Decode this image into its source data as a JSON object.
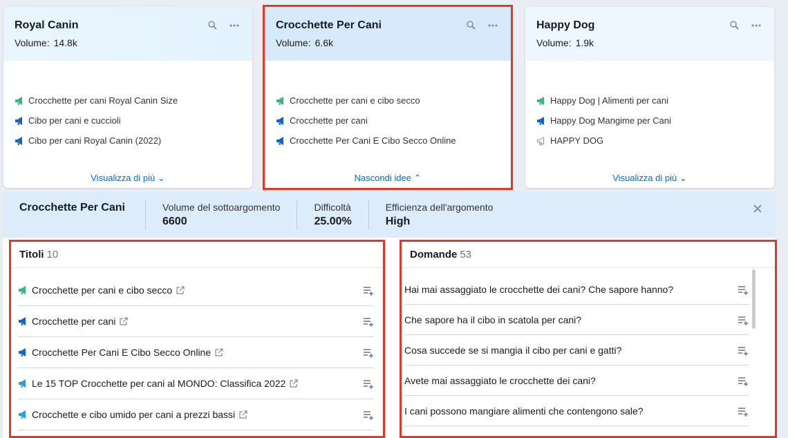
{
  "cards": [
    {
      "title": "Royal Canin",
      "volume_label": "Volume:",
      "volume": "14.8k",
      "ideas": [
        "Crocchette per cani Royal Canin Size",
        "Cibo per cani e cuccioli",
        "Cibo per cani Royal Canin (2022)"
      ],
      "toggle": "Visualizza di più"
    },
    {
      "title": "Crocchette Per Cani",
      "volume_label": "Volume:",
      "volume": "6.6k",
      "ideas": [
        "Crocchette per cani e cibo secco",
        "Crocchette per cani",
        "Crocchette Per Cani E Cibo Secco Online"
      ],
      "toggle": "Nascondi idee"
    },
    {
      "title": "Happy Dog",
      "volume_label": "Volume:",
      "volume": "1.9k",
      "ideas": [
        "Happy Dog | Alimenti per cani",
        "Happy Dog Mangime per Cani",
        "HAPPY DOG"
      ],
      "toggle": "Visualizza di più"
    }
  ],
  "detail": {
    "title": "Crocchette Per Cani",
    "stats": [
      {
        "label": "Volume del sottoargomento",
        "value": "6600"
      },
      {
        "label": "Difficoltà",
        "value": "25.00%"
      },
      {
        "label": "Efficienza dell'argomento",
        "value": "High"
      }
    ]
  },
  "titoli": {
    "heading": "Titoli",
    "count": "10",
    "items": [
      "Crocchette per cani e cibo secco",
      "Crocchette per cani",
      "Crocchette Per Cani E Cibo Secco Online",
      "Le 15 TOP Crocchette per cani al MONDO: Classifica 2022",
      "Crocchette e cibo umido per cani a prezzi bassi"
    ]
  },
  "domande": {
    "heading": "Domande",
    "count": "53",
    "items": [
      "Hai mai assaggiato le crocchette dei cani? Che sapore hanno?",
      "Che sapore ha il cibo in scatola per cani?",
      "Cosa succede se si mangia il cibo per cani e gatti?",
      "Avete mai assaggiato le crocchette dei cani?",
      "I cani possono mangiare alimenti che contengono sale?"
    ]
  }
}
